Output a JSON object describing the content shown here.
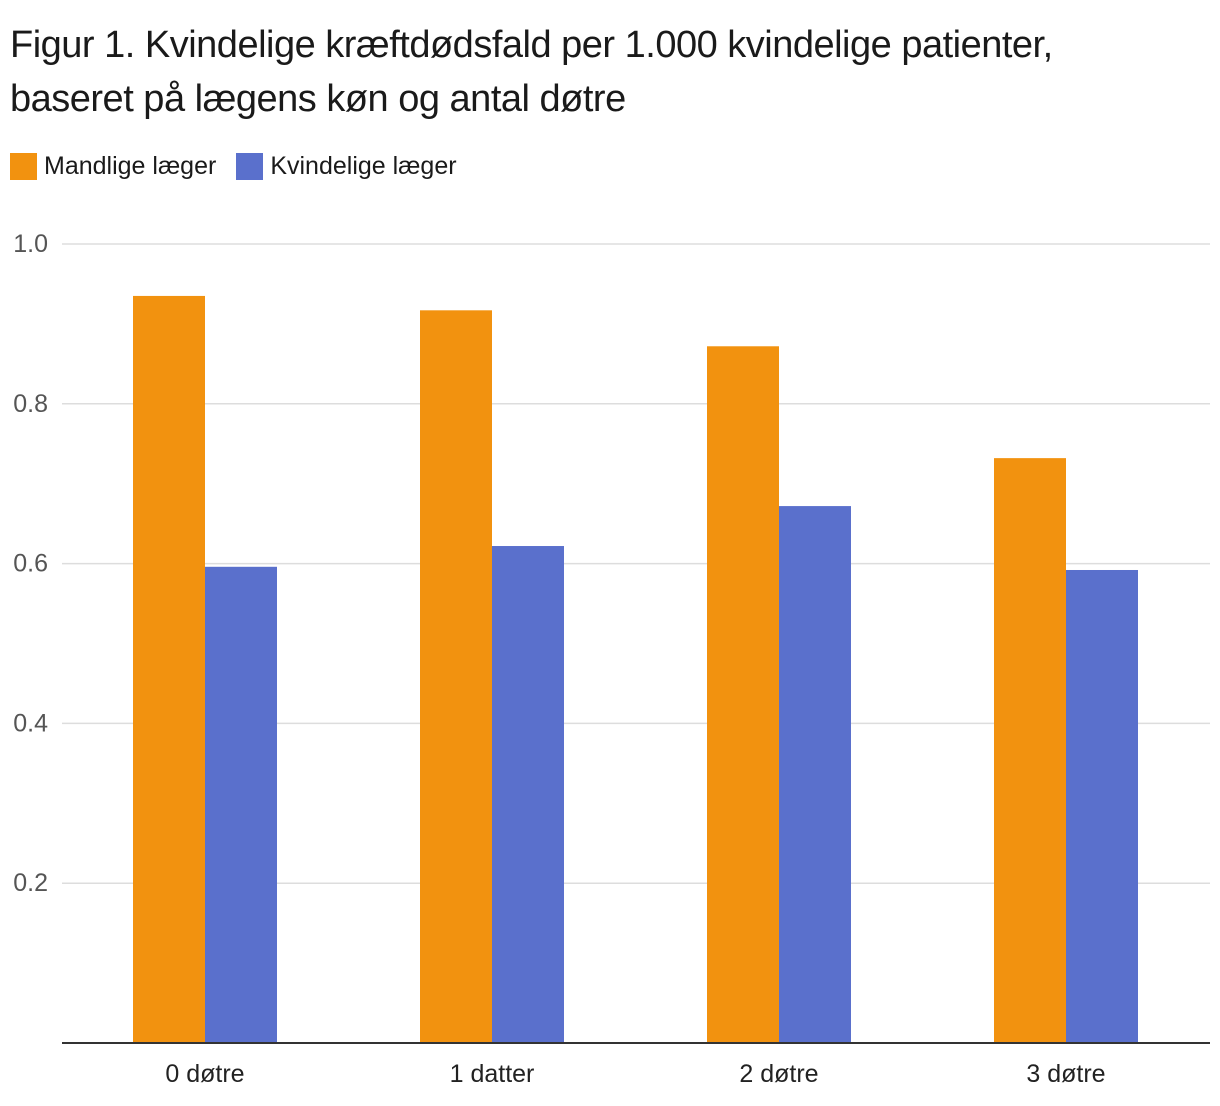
{
  "chart_data": {
    "type": "bar",
    "title": "Figur 1. Kvindelige kræftdødsfald per 1.000 kvindelige patienter, baseret på lægens køn og antal døtre",
    "xlabel": "",
    "ylabel": "",
    "categories": [
      "0 døtre",
      "1 datter",
      "2 døtre",
      "3 døtre"
    ],
    "series": [
      {
        "name": "Mandlige læger",
        "color": "#F2920F",
        "values": [
          0.935,
          0.917,
          0.872,
          0.732
        ]
      },
      {
        "name": "Kvindelige læger",
        "color": "#5A70CC",
        "values": [
          0.596,
          0.622,
          0.672,
          0.592
        ]
      }
    ],
    "ylim": [
      0,
      1.0
    ],
    "yticks": [
      {
        "value": 0.2,
        "label": "0.2"
      },
      {
        "value": 0.4,
        "label": "0.4"
      },
      {
        "value": 0.6,
        "label": "0.6"
      },
      {
        "value": 0.8,
        "label": "0.8"
      },
      {
        "value": 1.0,
        "label": "1.0"
      }
    ],
    "grid": true,
    "legend": "top-left"
  }
}
